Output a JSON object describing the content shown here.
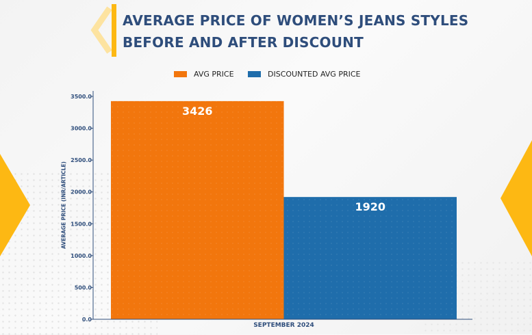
{
  "colors": {
    "title": "#2e4d7b",
    "accent_yellow": "#fdb813",
    "avg_price": "#f2760d",
    "discounted_avg_price": "#1f6dab"
  },
  "chart_data": {
    "type": "bar",
    "title_lines": [
      "AVERAGE PRICE OF WOMEN’S JEANS STYLES",
      "BEFORE AND AFTER DISCOUNT"
    ],
    "categories": [
      "SEPTEMBER 2024"
    ],
    "series": [
      {
        "name": "AVG PRICE",
        "values": [
          3426
        ],
        "color": "#f2760d",
        "label": "3426"
      },
      {
        "name": "DISCOUNTED AVG PRICE",
        "values": [
          1920
        ],
        "color": "#1f6dab",
        "label": "1920"
      }
    ],
    "xlabel": "SEPTEMBER 2024",
    "ylabel": "AVERAGE PRICE (INR/ARTICLE)",
    "ylim": [
      0,
      3500
    ],
    "yticks": [
      "0.0",
      "500.0",
      "1000.0",
      "1500.0",
      "2000.0",
      "2500.0",
      "3000.0",
      "3500.0"
    ],
    "ytick_values": [
      0,
      500,
      1000,
      1500,
      2000,
      2500,
      3000,
      3500
    ],
    "legend_position": "top-center",
    "grid": false
  }
}
